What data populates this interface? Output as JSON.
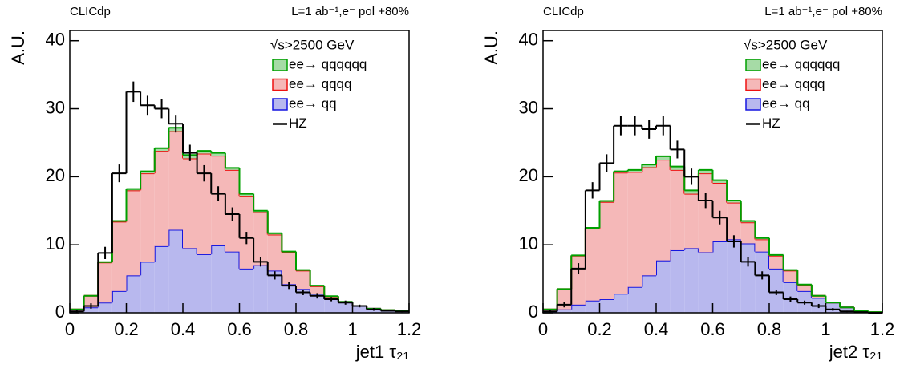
{
  "chart_data": [
    {
      "type": "histogram",
      "corner_left": "CLICdp",
      "corner_right": "L=1 ab⁻¹,e⁻ pol +80%",
      "legend_title": "√s>2500 GeV",
      "xlabel": "jet1 τ₂₁",
      "ylabel": "A.U.",
      "xlim": [
        0,
        1.2
      ],
      "ylim": [
        0,
        41.5
      ],
      "xticks": [
        0,
        0.2,
        0.4,
        0.6,
        0.8,
        1,
        1.2
      ],
      "yticks": [
        0,
        10,
        20,
        30,
        40
      ],
      "bins": [
        0,
        0.05,
        0.1,
        0.15,
        0.2,
        0.25,
        0.3,
        0.35,
        0.4,
        0.45,
        0.5,
        0.55,
        0.6,
        0.65,
        0.7,
        0.75,
        0.8,
        0.85,
        0.9,
        0.95,
        1,
        1.05,
        1.1,
        1.15,
        1.2
      ],
      "series": [
        {
          "name": "ee→ qqqqqq",
          "color": "#00a000",
          "fill": "#a6dba6",
          "stack": true,
          "values": [
            0,
            0,
            0.05,
            0.1,
            0.2,
            0.3,
            0.4,
            0.5,
            0.5,
            0.4,
            0.4,
            0.3,
            0.3,
            0.2,
            0.2,
            0.1,
            0.1,
            0.1,
            0.05,
            0,
            0,
            0,
            0,
            0
          ]
        },
        {
          "name": "ee→ qqqq",
          "color": "#ee1111",
          "fill": "#f5b8b8",
          "stack": true,
          "values": [
            0.2,
            1.7,
            5.9,
            10.2,
            12.5,
            13.0,
            14.0,
            14.5,
            13.2,
            14.8,
            13.2,
            12.0,
            10.7,
            7.8,
            5.3,
            4.7,
            2.7,
            1.1,
            0.2,
            0,
            0,
            0,
            0,
            0
          ]
        },
        {
          "name": "ee→ qq",
          "color": "#1515e0",
          "fill": "#b8b8ee",
          "stack": true,
          "values": [
            0.3,
            0.8,
            1.5,
            3.2,
            5.5,
            7.5,
            9.8,
            12.2,
            9.5,
            8.6,
            9.9,
            9.0,
            6.5,
            7.0,
            6.2,
            4.2,
            3.5,
            2.8,
            2.2,
            1.6,
            1.0,
            0.6,
            0.4,
            0.3
          ]
        },
        {
          "name": "HZ",
          "color": "#000000",
          "stack": false,
          "values": [
            0.2,
            1,
            8.8,
            20.5,
            32.5,
            30.5,
            30.0,
            27.8,
            23.5,
            20.5,
            17.5,
            14.5,
            11.0,
            7.5,
            5.5,
            4.0,
            3.0,
            2.5,
            2.0,
            1.5,
            1.0,
            0.5,
            0.3,
            0.2
          ],
          "errors": [
            0.2,
            0.4,
            0.9,
            1.3,
            1.5,
            1.4,
            1.4,
            1.3,
            1.2,
            1.2,
            1.1,
            1.0,
            0.9,
            0.7,
            0.6,
            0.5,
            0.4,
            0.4,
            0.3,
            0.3,
            0.2,
            0.2,
            0.1,
            0.1
          ]
        }
      ]
    },
    {
      "type": "histogram",
      "corner_left": "CLICdp",
      "corner_right": "L=1 ab⁻¹,e⁻ pol +80%",
      "legend_title": "√s>2500 GeV",
      "xlabel": "jet2 τ₂₁",
      "ylabel": "A.U.",
      "xlim": [
        0,
        1.2
      ],
      "ylim": [
        0,
        41.5
      ],
      "xticks": [
        0,
        0.2,
        0.4,
        0.6,
        0.8,
        1,
        1.2
      ],
      "yticks": [
        0,
        10,
        20,
        30,
        40
      ],
      "bins": [
        0,
        0.05,
        0.1,
        0.15,
        0.2,
        0.25,
        0.3,
        0.35,
        0.4,
        0.45,
        0.5,
        0.55,
        0.6,
        0.65,
        0.7,
        0.75,
        0.8,
        0.85,
        0.9,
        0.95,
        1,
        1.05,
        1.1,
        1.15,
        1.2
      ],
      "series": [
        {
          "name": "ee→ qqqqqq",
          "color": "#00a000",
          "fill": "#a6dba6",
          "stack": true,
          "values": [
            0,
            0,
            0.05,
            0.1,
            0.15,
            0.2,
            0.3,
            0.4,
            0.5,
            0.5,
            0.5,
            0.5,
            0.4,
            0.3,
            0.2,
            0.2,
            0.1,
            0.1,
            0.05,
            0,
            0,
            0,
            0,
            0
          ]
        },
        {
          "name": "ee→ qqqq",
          "color": "#ee1111",
          "fill": "#f5b8b8",
          "stack": true,
          "values": [
            0.3,
            3.0,
            7.2,
            10.6,
            14.3,
            17.8,
            16.9,
            15.9,
            14.8,
            11.8,
            8.0,
            11.6,
            8.6,
            5.4,
            3.1,
            1.8,
            1.9,
            1.7,
            0.9,
            0.3,
            0,
            0,
            0,
            0
          ]
        },
        {
          "name": "ee→ qq",
          "color": "#1515e0",
          "fill": "#b8b8ee",
          "stack": true,
          "values": [
            0.2,
            0.5,
            1.2,
            1.8,
            2.0,
            2.8,
            3.8,
            5.5,
            7.7,
            9.2,
            9.5,
            8.9,
            10.5,
            10.8,
            10.2,
            9.0,
            6.5,
            4.5,
            3.2,
            2.2,
            1.5,
            0.8,
            0.3,
            0.1
          ]
        },
        {
          "name": "HZ",
          "color": "#000000",
          "stack": false,
          "values": [
            0.2,
            1.2,
            6.5,
            18.0,
            22.0,
            27.5,
            27.5,
            27.0,
            27.5,
            24.0,
            20.0,
            16.5,
            14.0,
            10.5,
            7.5,
            5.5,
            3.0,
            2.0,
            1.5,
            1.0,
            0.5,
            0.2,
            0.1,
            0
          ],
          "errors": [
            0.2,
            0.4,
            0.8,
            1.2,
            1.3,
            1.4,
            1.4,
            1.4,
            1.4,
            1.3,
            1.2,
            1.1,
            1.0,
            0.9,
            0.7,
            0.6,
            0.4,
            0.4,
            0.3,
            0.3,
            0.2,
            0.1,
            0.1,
            0
          ]
        }
      ]
    }
  ]
}
